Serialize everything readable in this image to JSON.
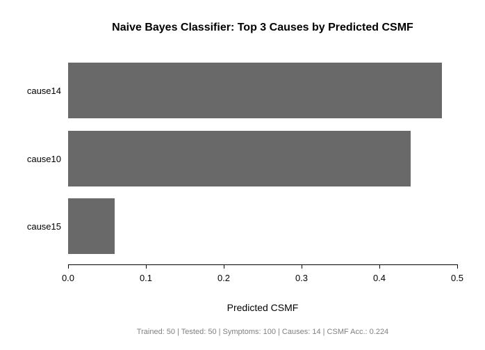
{
  "figure": {
    "background": "#ffffff",
    "bar_color": "#696969",
    "axis_color": "#000000",
    "text_color": "#000000",
    "footer_color": "#808080"
  },
  "chart_data": {
    "type": "bar",
    "orientation": "horizontal",
    "title": "Naive Bayes Classifier: Top 3 Causes by Predicted CSMF",
    "categories": [
      "cause14",
      "cause10",
      "cause15"
    ],
    "values": [
      0.48,
      0.44,
      0.06
    ],
    "xlabel": "Predicted CSMF",
    "ylabel": "",
    "xlim": [
      0,
      0.5
    ],
    "xticks": [
      0.0,
      0.1,
      0.2,
      0.3,
      0.4,
      0.5
    ],
    "xtick_labels": [
      "0.0",
      "0.1",
      "0.2",
      "0.3",
      "0.4",
      "0.5"
    ],
    "grid": false,
    "legend": false,
    "footer": "Trained: 50 | Tested: 50 | Symptoms: 100 | Causes: 14 | CSMF Acc.: 0.224"
  }
}
